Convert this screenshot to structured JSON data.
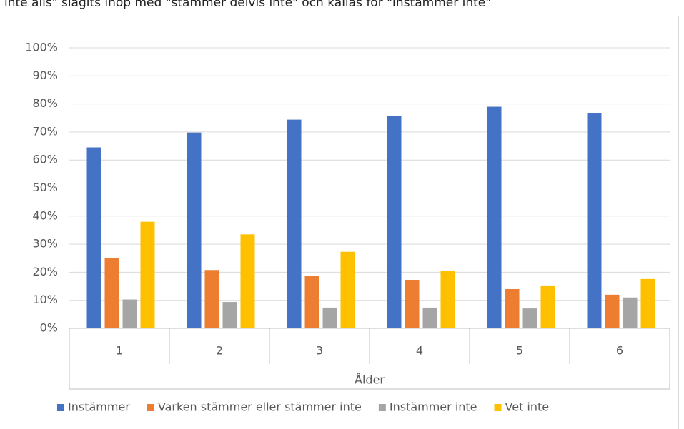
{
  "chart_data": {
    "type": "bar",
    "caption": "inte alls\" slagits ihop med \"stämmer delvis inte\" och kallas för \"Instämmer inte\"",
    "x_label": "Ålder",
    "categories": [
      "1",
      "2",
      "3",
      "4",
      "5",
      "6"
    ],
    "series": [
      {
        "name": "Instämmer",
        "color": "#4472c4",
        "values": [
          64.5,
          69.8,
          74.4,
          75.7,
          79,
          76.7
        ]
      },
      {
        "name": "Varken stämmer eller stämmer inte",
        "color": "#ed7d31",
        "values": [
          25,
          20.8,
          18.6,
          17.3,
          14,
          12
        ]
      },
      {
        "name": "Instämmer inte",
        "color": "#a5a5a5",
        "values": [
          10.3,
          9.4,
          7.4,
          7.4,
          7.1,
          11
        ]
      },
      {
        "name": "Vet inte",
        "color": "#ffc000",
        "values": [
          38,
          33.5,
          27.3,
          20.4,
          15.3,
          17.6
        ]
      }
    ],
    "ylim": [
      0,
      100
    ],
    "yticks": [
      {
        "value": 0,
        "label": "0%"
      },
      {
        "value": 10,
        "label": "10%"
      },
      {
        "value": 20,
        "label": "20%"
      },
      {
        "value": 30,
        "label": "30%"
      },
      {
        "value": 40,
        "label": "40%"
      },
      {
        "value": 50,
        "label": "50%"
      },
      {
        "value": 60,
        "label": "60%"
      },
      {
        "value": 70,
        "label": "70%"
      },
      {
        "value": 80,
        "label": "80%"
      },
      {
        "value": 90,
        "label": "90%"
      },
      {
        "value": 100,
        "label": "100%"
      }
    ],
    "grid": true,
    "legend": "bottom"
  }
}
